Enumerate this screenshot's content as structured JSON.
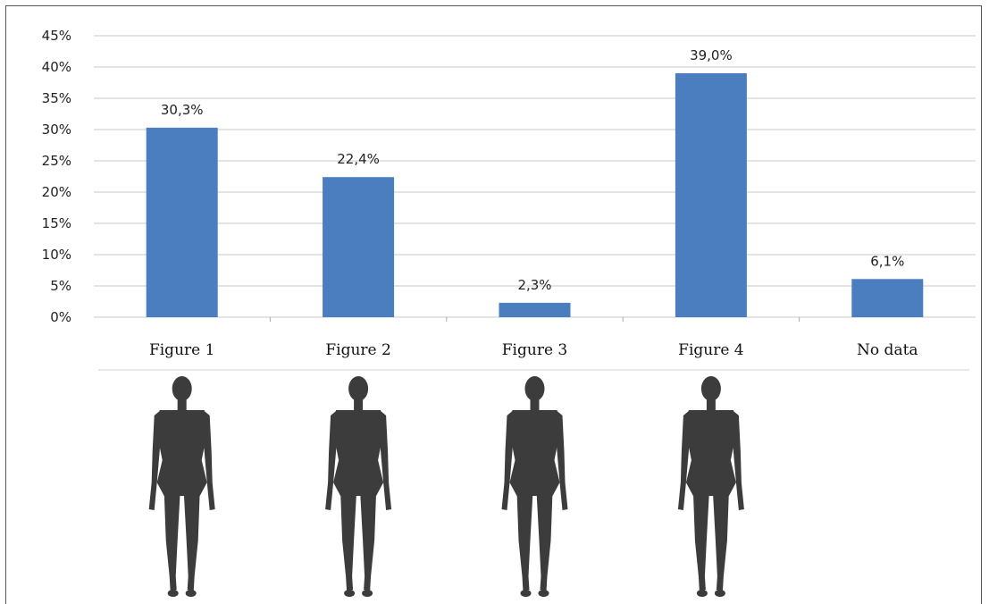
{
  "chart_data": {
    "type": "bar",
    "categories": [
      "Figure 1",
      "Figure 2",
      "Figure 3",
      "Figure 4",
      "No data"
    ],
    "values": [
      30.3,
      22.4,
      2.3,
      39.0,
      6.1
    ],
    "data_labels": [
      "30,3%",
      "22,4%",
      "2,3%",
      "39,0%",
      "6,1%"
    ],
    "ytick_labels": [
      "0%",
      "5%",
      "10%",
      "15%",
      "20%",
      "25%",
      "30%",
      "35%",
      "40%",
      "45%"
    ],
    "ylim": [
      0,
      45
    ],
    "grid": true,
    "bar_color": "#4a7ebf",
    "figure_icons": [
      "figure-1-silhouette",
      "figure-2-silhouette",
      "figure-3-silhouette",
      "figure-4-silhouette"
    ],
    "silhouette_color": "#3c3c3c"
  }
}
